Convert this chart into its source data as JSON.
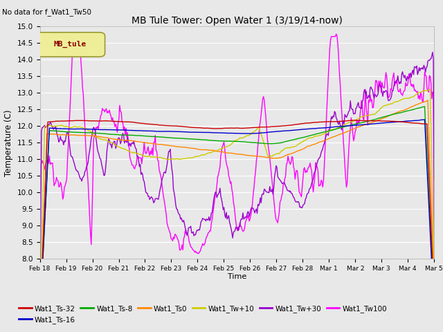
{
  "title": "MB Tule Tower: Open Water 1 (3/19/14-now)",
  "subtitle": "No data for f_Wat1_Tw50",
  "xlabel": "Time",
  "ylabel": "Temperature (C)",
  "ylim": [
    8.0,
    15.0
  ],
  "yticks": [
    8.0,
    8.5,
    9.0,
    9.5,
    10.0,
    10.5,
    11.0,
    11.5,
    12.0,
    12.5,
    13.0,
    13.5,
    14.0,
    14.5,
    15.0
  ],
  "xtick_labels": [
    "Feb 18",
    "Feb 19",
    "Feb 20",
    "Feb 21",
    "Feb 22",
    "Feb 23",
    "Feb 24",
    "Feb 25",
    "Feb 26",
    "Feb 27",
    "Feb 28",
    "Mar 1",
    "Mar 2",
    "Mar 3",
    "Mar 4",
    "Mar 5"
  ],
  "series": {
    "Wat1_Ts-32": {
      "color": "#cc0000",
      "lw": 1.0
    },
    "Wat1_Ts-16": {
      "color": "#0000cc",
      "lw": 1.0
    },
    "Wat1_Ts-8": {
      "color": "#00aa00",
      "lw": 1.0
    },
    "Wat1_Ts0": {
      "color": "#ff8800",
      "lw": 1.0
    },
    "Wat1_Tw+10": {
      "color": "#cccc00",
      "lw": 1.0
    },
    "Wat1_Tw+30": {
      "color": "#9900cc",
      "lw": 1.0
    },
    "Wat1_Tw100": {
      "color": "#ff00ff",
      "lw": 1.0
    }
  },
  "legend_box_label": "MB_tule",
  "legend_box_facecolor": "#eeee99",
  "legend_box_edgecolor": "#999933",
  "legend_box_text_color": "#880000",
  "bg_color": "#e8e8e8"
}
